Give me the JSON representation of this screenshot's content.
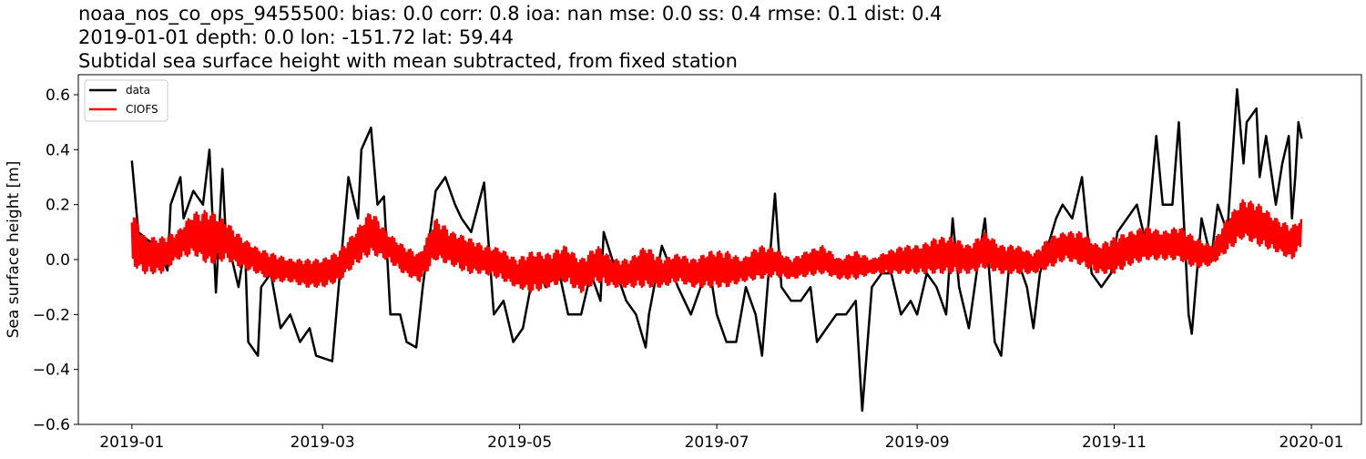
{
  "chart_data": {
    "type": "line",
    "title_lines": [
      "noaa_nos_co_ops_9455500: bias: 0.0  corr: 0.8  ioa: nan  mse: 0.0  ss: 0.4  rmse: 0.1  dist: 0.4",
      "2019-01-01 depth: 0.0 lon: -151.72 lat: 59.44",
      "Subtidal sea surface height with mean subtracted, from fixed station"
    ],
    "xlabel": "",
    "ylabel": "Sea surface height [m]",
    "xlim": [
      "2018-12-15T10:00",
      "2020-01-16T12:00"
    ],
    "ylim": [
      -0.6,
      0.673
    ],
    "x_ticks": [
      "2019-01",
      "2019-03",
      "2019-05",
      "2019-07",
      "2019-09",
      "2019-11",
      "2020-01"
    ],
    "y_ticks": [
      "0.6",
      "0.4",
      "0.2",
      "0.0",
      "−0.2",
      "−0.4",
      "−0.6"
    ],
    "y_tick_values": [
      0.6,
      0.4,
      0.2,
      0.0,
      -0.2,
      -0.4,
      -0.6
    ],
    "grid": false,
    "legend": {
      "placement": "upper-left",
      "entries": [
        "data",
        "CIOFS"
      ]
    },
    "series": [
      {
        "name": "data",
        "color": "#000000",
        "points": [
          [
            "2019-01-01",
            0.36
          ],
          [
            "2019-01-03",
            0.1
          ],
          [
            "2019-01-06",
            0.07
          ],
          [
            "2019-01-09",
            0.05
          ],
          [
            "2019-01-12",
            -0.04
          ],
          [
            "2019-01-13",
            0.2
          ],
          [
            "2019-01-16",
            0.3
          ],
          [
            "2019-01-17",
            0.15
          ],
          [
            "2019-01-20",
            0.25
          ],
          [
            "2019-01-23",
            0.2
          ],
          [
            "2019-01-25",
            0.4
          ],
          [
            "2019-01-27",
            -0.12
          ],
          [
            "2019-01-29",
            0.33
          ],
          [
            "2019-01-30",
            0.1
          ],
          [
            "2019-02-03",
            -0.1
          ],
          [
            "2019-02-05",
            0.05
          ],
          [
            "2019-02-06",
            -0.3
          ],
          [
            "2019-02-09",
            -0.35
          ],
          [
            "2019-02-10",
            -0.1
          ],
          [
            "2019-02-13",
            -0.05
          ],
          [
            "2019-02-16",
            -0.25
          ],
          [
            "2019-02-19",
            -0.2
          ],
          [
            "2019-02-22",
            -0.3
          ],
          [
            "2019-02-25",
            -0.25
          ],
          [
            "2019-02-27",
            -0.35
          ],
          [
            "2019-03-04",
            -0.37
          ],
          [
            "2019-03-06",
            -0.1
          ],
          [
            "2019-03-09",
            0.3
          ],
          [
            "2019-03-12",
            0.15
          ],
          [
            "2019-03-13",
            0.4
          ],
          [
            "2019-03-16",
            0.48
          ],
          [
            "2019-03-18",
            0.2
          ],
          [
            "2019-03-20",
            0.23
          ],
          [
            "2019-03-22",
            -0.2
          ],
          [
            "2019-03-25",
            -0.2
          ],
          [
            "2019-03-27",
            -0.3
          ],
          [
            "2019-03-30",
            -0.32
          ],
          [
            "2019-04-01",
            -0.1
          ],
          [
            "2019-04-05",
            0.25
          ],
          [
            "2019-04-08",
            0.3
          ],
          [
            "2019-04-11",
            0.2
          ],
          [
            "2019-04-13",
            0.15
          ],
          [
            "2019-04-16",
            0.1
          ],
          [
            "2019-04-20",
            0.28
          ],
          [
            "2019-04-23",
            -0.2
          ],
          [
            "2019-04-26",
            -0.15
          ],
          [
            "2019-04-29",
            -0.3
          ],
          [
            "2019-05-02",
            -0.25
          ],
          [
            "2019-05-06",
            0.0
          ],
          [
            "2019-05-09",
            -0.1
          ],
          [
            "2019-05-12",
            0.02
          ],
          [
            "2019-05-16",
            -0.2
          ],
          [
            "2019-05-20",
            -0.2
          ],
          [
            "2019-05-23",
            -0.05
          ],
          [
            "2019-05-26",
            -0.15
          ],
          [
            "2019-05-27",
            0.1
          ],
          [
            "2019-05-31",
            -0.05
          ],
          [
            "2019-06-03",
            -0.15
          ],
          [
            "2019-06-06",
            -0.2
          ],
          [
            "2019-06-09",
            -0.32
          ],
          [
            "2019-06-10",
            -0.2
          ],
          [
            "2019-06-14",
            0.05
          ],
          [
            "2019-06-19",
            -0.1
          ],
          [
            "2019-06-23",
            -0.2
          ],
          [
            "2019-06-26",
            -0.1
          ],
          [
            "2019-06-29",
            -0.05
          ],
          [
            "2019-07-01",
            -0.2
          ],
          [
            "2019-07-04",
            -0.3
          ],
          [
            "2019-07-07",
            -0.3
          ],
          [
            "2019-07-10",
            -0.1
          ],
          [
            "2019-07-13",
            -0.2
          ],
          [
            "2019-07-15",
            -0.35
          ],
          [
            "2019-07-19",
            0.24
          ],
          [
            "2019-07-21",
            -0.1
          ],
          [
            "2019-07-24",
            -0.15
          ],
          [
            "2019-07-27",
            -0.15
          ],
          [
            "2019-07-30",
            -0.1
          ],
          [
            "2019-08-01",
            -0.3
          ],
          [
            "2019-08-04",
            -0.25
          ],
          [
            "2019-08-07",
            -0.2
          ],
          [
            "2019-08-10",
            -0.2
          ],
          [
            "2019-08-13",
            -0.15
          ],
          [
            "2019-08-15",
            -0.55
          ],
          [
            "2019-08-18",
            -0.1
          ],
          [
            "2019-08-21",
            -0.05
          ],
          [
            "2019-08-24",
            -0.05
          ],
          [
            "2019-08-27",
            -0.2
          ],
          [
            "2019-08-30",
            -0.15
          ],
          [
            "2019-09-01",
            -0.2
          ],
          [
            "2019-09-04",
            -0.05
          ],
          [
            "2019-09-07",
            -0.1
          ],
          [
            "2019-09-10",
            -0.2
          ],
          [
            "2019-09-12",
            0.15
          ],
          [
            "2019-09-14",
            -0.1
          ],
          [
            "2019-09-17",
            -0.25
          ],
          [
            "2019-09-20",
            0.0
          ],
          [
            "2019-09-22",
            0.15
          ],
          [
            "2019-09-25",
            -0.3
          ],
          [
            "2019-09-27",
            -0.35
          ],
          [
            "2019-09-30",
            0.05
          ],
          [
            "2019-10-02",
            0.0
          ],
          [
            "2019-10-05",
            -0.1
          ],
          [
            "2019-10-07",
            -0.25
          ],
          [
            "2019-10-09",
            -0.05
          ],
          [
            "2019-10-14",
            0.15
          ],
          [
            "2019-10-16",
            0.2
          ],
          [
            "2019-10-19",
            0.15
          ],
          [
            "2019-10-22",
            0.3
          ],
          [
            "2019-10-25",
            -0.05
          ],
          [
            "2019-10-28",
            -0.1
          ],
          [
            "2019-10-31",
            -0.05
          ],
          [
            "2019-11-02",
            0.1
          ],
          [
            "2019-11-05",
            0.15
          ],
          [
            "2019-11-08",
            0.2
          ],
          [
            "2019-11-11",
            0.05
          ],
          [
            "2019-11-14",
            0.45
          ],
          [
            "2019-11-16",
            0.2
          ],
          [
            "2019-11-19",
            0.2
          ],
          [
            "2019-11-21",
            0.5
          ],
          [
            "2019-11-24",
            -0.2
          ],
          [
            "2019-11-25",
            -0.27
          ],
          [
            "2019-11-28",
            0.15
          ],
          [
            "2019-12-01",
            0.0
          ],
          [
            "2019-12-03",
            0.2
          ],
          [
            "2019-12-06",
            0.1
          ],
          [
            "2019-12-09",
            0.62
          ],
          [
            "2019-12-11",
            0.35
          ],
          [
            "2019-12-12",
            0.5
          ],
          [
            "2019-12-15",
            0.55
          ],
          [
            "2019-12-16",
            0.3
          ],
          [
            "2019-12-18",
            0.45
          ],
          [
            "2019-12-21",
            0.2
          ],
          [
            "2019-12-23",
            0.35
          ],
          [
            "2019-12-25",
            0.45
          ],
          [
            "2019-12-26",
            0.15
          ],
          [
            "2019-12-27",
            0.3
          ],
          [
            "2019-12-28",
            0.5
          ],
          [
            "2019-12-29",
            0.44
          ]
        ]
      },
      {
        "name": "CIOFS",
        "color": "#ff0000",
        "envelope_min_max": [
          [
            "2019-01-01",
            -0.02,
            0.18
          ],
          [
            "2019-01-05",
            -0.05,
            0.08
          ],
          [
            "2019-01-10",
            -0.05,
            0.08
          ],
          [
            "2019-01-15",
            0.0,
            0.1
          ],
          [
            "2019-01-20",
            0.02,
            0.17
          ],
          [
            "2019-01-25",
            -0.02,
            0.18
          ],
          [
            "2019-01-30",
            0.0,
            0.14
          ],
          [
            "2019-02-04",
            -0.03,
            0.08
          ],
          [
            "2019-02-09",
            -0.05,
            0.04
          ],
          [
            "2019-02-14",
            -0.08,
            0.02
          ],
          [
            "2019-02-19",
            -0.08,
            0.0
          ],
          [
            "2019-02-24",
            -0.1,
            0.0
          ],
          [
            "2019-03-01",
            -0.1,
            0.0
          ],
          [
            "2019-03-06",
            -0.08,
            0.03
          ],
          [
            "2019-03-11",
            -0.02,
            0.1
          ],
          [
            "2019-03-16",
            0.02,
            0.18
          ],
          [
            "2019-03-21",
            0.0,
            0.1
          ],
          [
            "2019-03-26",
            -0.05,
            0.05
          ],
          [
            "2019-03-31",
            -0.08,
            0.02
          ],
          [
            "2019-04-05",
            0.0,
            0.15
          ],
          [
            "2019-04-10",
            -0.02,
            0.1
          ],
          [
            "2019-04-15",
            -0.05,
            0.08
          ],
          [
            "2019-04-20",
            -0.05,
            0.05
          ],
          [
            "2019-04-25",
            -0.07,
            0.04
          ],
          [
            "2019-04-30",
            -0.1,
            0.0
          ],
          [
            "2019-05-05",
            -0.12,
            0.03
          ],
          [
            "2019-05-10",
            -0.1,
            0.02
          ],
          [
            "2019-05-15",
            -0.08,
            0.05
          ],
          [
            "2019-05-20",
            -0.12,
            0.0
          ],
          [
            "2019-05-25",
            -0.08,
            0.05
          ],
          [
            "2019-05-30",
            -0.1,
            0.0
          ],
          [
            "2019-06-04",
            -0.1,
            0.0
          ],
          [
            "2019-06-09",
            -0.1,
            0.05
          ],
          [
            "2019-06-14",
            -0.1,
            0.0
          ],
          [
            "2019-06-19",
            -0.08,
            0.02
          ],
          [
            "2019-06-24",
            -0.1,
            0.0
          ],
          [
            "2019-06-29",
            -0.1,
            0.03
          ],
          [
            "2019-07-04",
            -0.1,
            0.03
          ],
          [
            "2019-07-09",
            -0.08,
            0.0
          ],
          [
            "2019-07-14",
            -0.07,
            0.05
          ],
          [
            "2019-07-19",
            -0.06,
            0.04
          ],
          [
            "2019-07-24",
            -0.07,
            0.0
          ],
          [
            "2019-07-29",
            -0.06,
            0.03
          ],
          [
            "2019-08-03",
            -0.05,
            0.05
          ],
          [
            "2019-08-08",
            -0.07,
            0.0
          ],
          [
            "2019-08-13",
            -0.07,
            0.03
          ],
          [
            "2019-08-18",
            -0.05,
            0.0
          ],
          [
            "2019-08-23",
            -0.05,
            0.03
          ],
          [
            "2019-08-28",
            -0.05,
            0.05
          ],
          [
            "2019-09-02",
            -0.05,
            0.05
          ],
          [
            "2019-09-07",
            -0.05,
            0.08
          ],
          [
            "2019-09-12",
            -0.05,
            0.08
          ],
          [
            "2019-09-17",
            -0.05,
            0.05
          ],
          [
            "2019-09-22",
            -0.03,
            0.1
          ],
          [
            "2019-09-27",
            -0.05,
            0.05
          ],
          [
            "2019-10-02",
            -0.05,
            0.05
          ],
          [
            "2019-10-07",
            -0.05,
            0.02
          ],
          [
            "2019-10-12",
            -0.03,
            0.08
          ],
          [
            "2019-10-17",
            0.0,
            0.1
          ],
          [
            "2019-10-22",
            -0.02,
            0.1
          ],
          [
            "2019-10-27",
            -0.05,
            0.05
          ],
          [
            "2019-11-01",
            -0.05,
            0.08
          ],
          [
            "2019-11-06",
            -0.02,
            0.1
          ],
          [
            "2019-11-11",
            0.0,
            0.12
          ],
          [
            "2019-11-16",
            0.0,
            0.1
          ],
          [
            "2019-11-21",
            0.0,
            0.12
          ],
          [
            "2019-11-26",
            -0.03,
            0.08
          ],
          [
            "2019-12-01",
            -0.02,
            0.05
          ],
          [
            "2019-12-06",
            0.03,
            0.15
          ],
          [
            "2019-12-11",
            0.08,
            0.22
          ],
          [
            "2019-12-16",
            0.05,
            0.2
          ],
          [
            "2019-12-21",
            0.03,
            0.15
          ],
          [
            "2019-12-26",
            0.0,
            0.12
          ],
          [
            "2019-12-29",
            0.05,
            0.15
          ]
        ]
      }
    ]
  }
}
